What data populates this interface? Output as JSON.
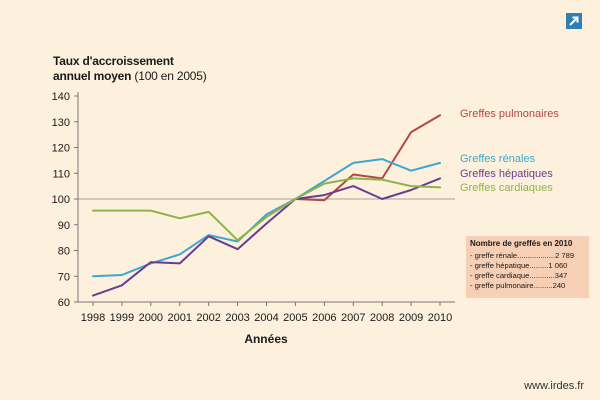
{
  "ylabel_line1": "Taux d'accroissement",
  "ylabel_line2_bold": "annuel moyen",
  "ylabel_line2_unit": " (100 en 2005)",
  "xlabel": "Années",
  "source": "www.irdes.fr",
  "icon": "expand-arrow-icon",
  "colors": {
    "background": "#fdf1dd",
    "pulmonaires": "#b5473f",
    "renales": "#3ea7d1",
    "hepatiques": "#6a3d8f",
    "cardiaques": "#8db44a",
    "legend_box": "#f6cfb4",
    "icon": "#2f7fb3"
  },
  "legend_box": {
    "title": "Nombre de greffés en 2010",
    "rows": [
      {
        "label": "- greffe rénale",
        "dots": "..................",
        "value": "2 789"
      },
      {
        "label": "- greffe hépatique",
        "dots": ".........",
        "value": "1 060"
      },
      {
        "label": "- greffe cardiaque",
        "dots": "............",
        "value": "347"
      },
      {
        "label": "- greffe pulmonaire",
        "dots": ".........",
        "value": "240"
      }
    ]
  },
  "chart_data": {
    "type": "line",
    "x": [
      1998,
      1999,
      2000,
      2001,
      2002,
      2003,
      2004,
      2005,
      2006,
      2007,
      2008,
      2009,
      2010
    ],
    "xlabel": "Années",
    "ylabel": "Taux d'accroissement annuel moyen (100 en 2005)",
    "ylim": [
      60,
      140
    ],
    "yticks": [
      60,
      70,
      80,
      90,
      100,
      110,
      120,
      130,
      140
    ],
    "reference_line": 100,
    "series": [
      {
        "name": "Greffes pulmonaires",
        "color": "#b5473f",
        "values": [
          null,
          null,
          null,
          null,
          null,
          null,
          null,
          100,
          99.5,
          109.5,
          108,
          126,
          132.5
        ]
      },
      {
        "name": "Greffes rénales",
        "color": "#3ea7d1",
        "values": [
          70,
          70.5,
          75,
          78.5,
          86,
          83.5,
          94,
          100,
          107,
          114,
          115.5,
          111,
          114
        ]
      },
      {
        "name": "Greffes hépatiques",
        "color": "#6a3d8f",
        "values": [
          62.5,
          66.5,
          75.5,
          75,
          85.5,
          80.5,
          90.5,
          100,
          101.5,
          105,
          100,
          103.5,
          108
        ]
      },
      {
        "name": "Greffes cardiaques",
        "color": "#8db44a",
        "values": [
          95.5,
          95.5,
          95.5,
          92.5,
          95,
          84,
          93,
          100,
          106,
          108,
          107.5,
          105,
          104.5
        ]
      }
    ]
  }
}
